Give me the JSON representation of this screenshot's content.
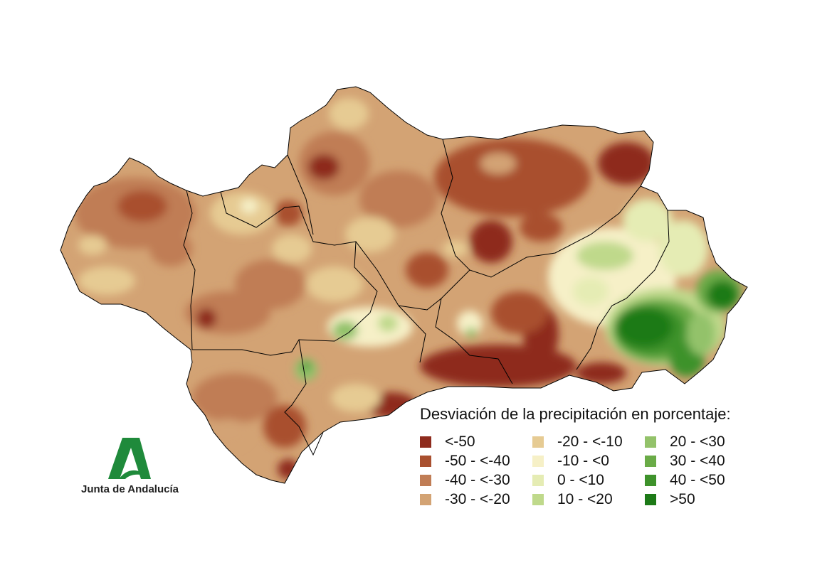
{
  "legend": {
    "title": "Desviación de la precipitación en porcentaje:",
    "classes": [
      {
        "label": "<-50",
        "color": "#8e2b1d"
      },
      {
        "label": "-50 - <-40",
        "color": "#a9502f"
      },
      {
        "label": "-40 - <-30",
        "color": "#c07d55"
      },
      {
        "label": "-30 - <-20",
        "color": "#d3a374"
      },
      {
        "label": "-20 - <-10",
        "color": "#e6cb93"
      },
      {
        "label": "-10 - <0",
        "color": "#f6f0c7"
      },
      {
        "label": "0 - <10",
        "color": "#e5ecb4"
      },
      {
        "label": "10 - <20",
        "color": "#bfd98b"
      },
      {
        "label": "20 - <30",
        "color": "#93c26a"
      },
      {
        "label": "30 - <40",
        "color": "#6aab47"
      },
      {
        "label": "40 - <50",
        "color": "#3e922b"
      },
      {
        "label": ">50",
        "color": "#1d7a17"
      }
    ]
  },
  "logo": {
    "text": "Junta de Andalucía",
    "color": "#1f8a3b"
  }
}
